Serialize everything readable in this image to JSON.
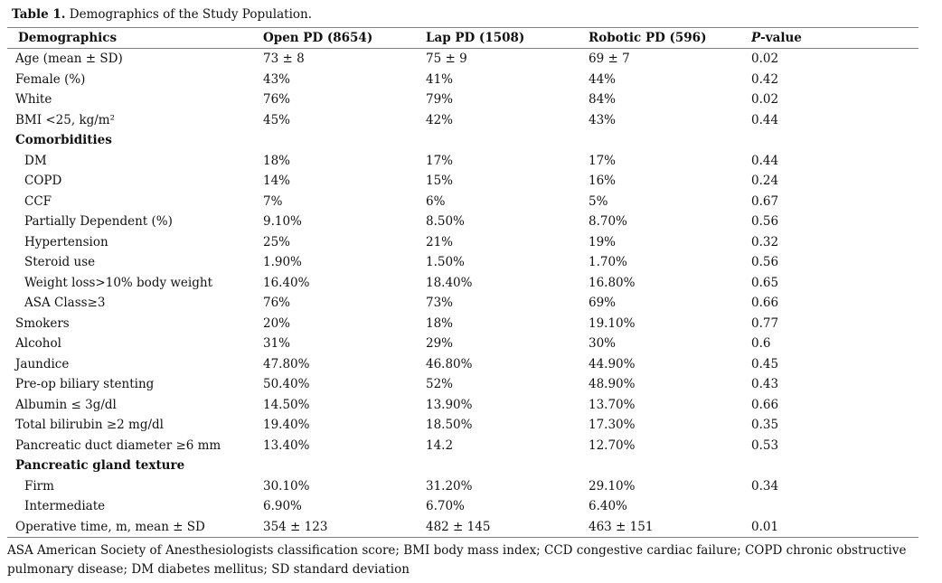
{
  "caption": {
    "label": "Table 1.",
    "text": " Demographics of the Study Population."
  },
  "colors": {
    "rule": "#7f7f7f",
    "text": "#111111",
    "background": "#ffffff"
  },
  "table": {
    "columns": [
      "Demographics",
      "Open PD (8654)",
      "Lap PD (1508)",
      "Robotic PD (596)",
      "P-value"
    ],
    "rows": [
      {
        "label": "Age (mean ± SD)",
        "section": false,
        "indent": false,
        "values": [
          "73 ± 8",
          "75 ± 9",
          "69 ± 7",
          "0.02"
        ]
      },
      {
        "label": "Female (%)",
        "section": false,
        "indent": false,
        "values": [
          "43%",
          "41%",
          "44%",
          "0.42"
        ]
      },
      {
        "label": "White",
        "section": false,
        "indent": false,
        "values": [
          "76%",
          "79%",
          "84%",
          "0.02"
        ]
      },
      {
        "label": "BMI <25, kg/m²",
        "section": false,
        "indent": false,
        "values": [
          "45%",
          "42%",
          "43%",
          "0.44"
        ]
      },
      {
        "label": "Comorbidities",
        "section": true,
        "indent": false,
        "values": [
          "",
          "",
          "",
          ""
        ]
      },
      {
        "label": "DM",
        "section": false,
        "indent": true,
        "values": [
          "18%",
          "17%",
          "17%",
          "0.44"
        ]
      },
      {
        "label": "COPD",
        "section": false,
        "indent": true,
        "values": [
          "14%",
          "15%",
          "16%",
          "0.24"
        ]
      },
      {
        "label": "CCF",
        "section": false,
        "indent": true,
        "values": [
          "7%",
          "6%",
          "5%",
          "0.67"
        ]
      },
      {
        "label": "Partially Dependent (%)",
        "section": false,
        "indent": true,
        "values": [
          "9.10%",
          "8.50%",
          "8.70%",
          "0.56"
        ]
      },
      {
        "label": "Hypertension",
        "section": false,
        "indent": true,
        "values": [
          "25%",
          "21%",
          "19%",
          "0.32"
        ]
      },
      {
        "label": "Steroid use",
        "section": false,
        "indent": true,
        "values": [
          "1.90%",
          "1.50%",
          "1.70%",
          "0.56"
        ]
      },
      {
        "label": "Weight loss>10% body weight",
        "section": false,
        "indent": true,
        "values": [
          "16.40%",
          "18.40%",
          "16.80%",
          "0.65"
        ]
      },
      {
        "label": "ASA Class≥3",
        "section": false,
        "indent": true,
        "values": [
          "76%",
          "73%",
          "69%",
          "0.66"
        ]
      },
      {
        "label": "Smokers",
        "section": false,
        "indent": false,
        "values": [
          "20%",
          "18%",
          "19.10%",
          "0.77"
        ]
      },
      {
        "label": "Alcohol",
        "section": false,
        "indent": false,
        "values": [
          "31%",
          "29%",
          "30%",
          "0.6"
        ]
      },
      {
        "label": "Jaundice",
        "section": false,
        "indent": false,
        "values": [
          "47.80%",
          "46.80%",
          "44.90%",
          "0.45"
        ]
      },
      {
        "label": "Pre-op biliary stenting",
        "section": false,
        "indent": false,
        "values": [
          "50.40%",
          "52%",
          "48.90%",
          "0.43"
        ]
      },
      {
        "label": "Albumin ≤ 3g/dl",
        "section": false,
        "indent": false,
        "values": [
          "14.50%",
          "13.90%",
          "13.70%",
          "0.66"
        ]
      },
      {
        "label": "Total bilirubin ≥2 mg/dl",
        "section": false,
        "indent": false,
        "values": [
          "19.40%",
          "18.50%",
          "17.30%",
          "0.35"
        ]
      },
      {
        "label": "Pancreatic duct diameter ≥6 mm",
        "section": false,
        "indent": false,
        "values": [
          "13.40%",
          "14.2",
          "12.70%",
          "0.53"
        ]
      },
      {
        "label": "Pancreatic gland texture",
        "section": true,
        "indent": false,
        "values": [
          "",
          "",
          "",
          ""
        ]
      },
      {
        "label": "Firm",
        "section": false,
        "indent": true,
        "values": [
          "30.10%",
          "31.20%",
          "29.10%",
          "0.34"
        ]
      },
      {
        "label": "Intermediate",
        "section": false,
        "indent": true,
        "values": [
          "6.90%",
          "6.70%",
          "6.40%",
          ""
        ]
      },
      {
        "label": "Operative time, m, mean ± SD",
        "section": false,
        "indent": false,
        "values": [
          "354 ± 123",
          "482 ± 145",
          "463 ± 151",
          "0.01"
        ]
      }
    ]
  },
  "footnote": "ASA American Society of Anesthesiologists classification score; BMI body mass index; CCD congestive cardiac failure; COPD chronic obstructive pulmonary disease; DM diabetes mellitus; SD standard deviation"
}
